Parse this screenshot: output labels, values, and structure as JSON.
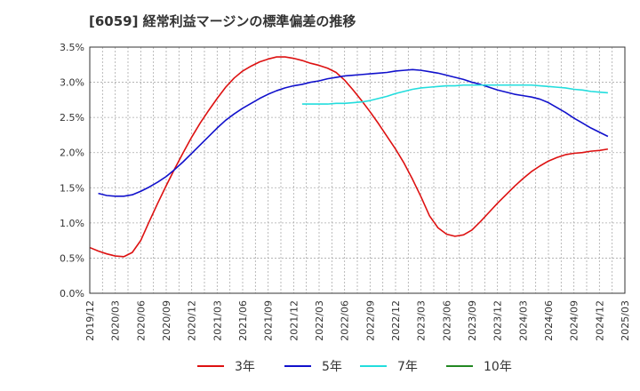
{
  "chart_data": {
    "type": "line",
    "title": "[6059]  経常利益マージンの標準偏差の推移",
    "xlabel": "",
    "ylabel": "",
    "ylim": [
      0.0,
      3.5
    ],
    "y_ticks": [
      "0.0%",
      "0.5%",
      "1.0%",
      "1.5%",
      "2.0%",
      "2.5%",
      "3.0%",
      "3.5%"
    ],
    "x_ticks": [
      "2019/12",
      "2020/03",
      "2020/06",
      "2020/09",
      "2020/12",
      "2021/03",
      "2021/06",
      "2021/09",
      "2021/12",
      "2022/03",
      "2022/06",
      "2022/09",
      "2022/12",
      "2023/03",
      "2023/06",
      "2023/09",
      "2023/12",
      "2024/03",
      "2024/06",
      "2024/09",
      "2024/12",
      "2025/03"
    ],
    "grid": true,
    "legend_position": "bottom",
    "series": [
      {
        "name": "3年",
        "color": "#dd1111",
        "points": [
          [
            "2019/12",
            0.65
          ],
          [
            "2020/01",
            0.6
          ],
          [
            "2020/02",
            0.56
          ],
          [
            "2020/03",
            0.53
          ],
          [
            "2020/04",
            0.52
          ],
          [
            "2020/05",
            0.58
          ],
          [
            "2020/06",
            0.75
          ],
          [
            "2020/07",
            1.02
          ],
          [
            "2020/08",
            1.28
          ],
          [
            "2020/09",
            1.53
          ],
          [
            "2020/10",
            1.77
          ],
          [
            "2020/11",
            2.0
          ],
          [
            "2020/12",
            2.22
          ],
          [
            "2021/01",
            2.42
          ],
          [
            "2021/02",
            2.6
          ],
          [
            "2021/03",
            2.77
          ],
          [
            "2021/04",
            2.93
          ],
          [
            "2021/05",
            3.06
          ],
          [
            "2021/06",
            3.16
          ],
          [
            "2021/07",
            3.23
          ],
          [
            "2021/08",
            3.29
          ],
          [
            "2021/09",
            3.33
          ],
          [
            "2021/10",
            3.36
          ],
          [
            "2021/11",
            3.36
          ],
          [
            "2021/12",
            3.34
          ],
          [
            "2022/01",
            3.31
          ],
          [
            "2022/02",
            3.27
          ],
          [
            "2022/03",
            3.24
          ],
          [
            "2022/04",
            3.2
          ],
          [
            "2022/05",
            3.14
          ],
          [
            "2022/06",
            3.03
          ],
          [
            "2022/07",
            2.89
          ],
          [
            "2022/08",
            2.74
          ],
          [
            "2022/09",
            2.58
          ],
          [
            "2022/10",
            2.41
          ],
          [
            "2022/11",
            2.23
          ],
          [
            "2022/12",
            2.05
          ],
          [
            "2023/01",
            1.85
          ],
          [
            "2023/02",
            1.62
          ],
          [
            "2023/03",
            1.37
          ],
          [
            "2023/04",
            1.1
          ],
          [
            "2023/05",
            0.93
          ],
          [
            "2023/06",
            0.84
          ],
          [
            "2023/07",
            0.81
          ],
          [
            "2023/08",
            0.83
          ],
          [
            "2023/09",
            0.9
          ],
          [
            "2023/10",
            1.02
          ],
          [
            "2023/11",
            1.15
          ],
          [
            "2023/12",
            1.28
          ],
          [
            "2024/01",
            1.4
          ],
          [
            "2024/02",
            1.52
          ],
          [
            "2024/03",
            1.63
          ],
          [
            "2024/04",
            1.73
          ],
          [
            "2024/05",
            1.81
          ],
          [
            "2024/06",
            1.88
          ],
          [
            "2024/07",
            1.93
          ],
          [
            "2024/08",
            1.97
          ],
          [
            "2024/09",
            1.99
          ],
          [
            "2024/10",
            2.0
          ],
          [
            "2024/11",
            2.02
          ],
          [
            "2024/12",
            2.03
          ],
          [
            "2025/01",
            2.05
          ]
        ]
      },
      {
        "name": "5年",
        "color": "#1111cc",
        "points": [
          [
            "2020/01",
            1.42
          ],
          [
            "2020/02",
            1.39
          ],
          [
            "2020/03",
            1.38
          ],
          [
            "2020/04",
            1.38
          ],
          [
            "2020/05",
            1.4
          ],
          [
            "2020/06",
            1.45
          ],
          [
            "2020/07",
            1.51
          ],
          [
            "2020/08",
            1.58
          ],
          [
            "2020/09",
            1.66
          ],
          [
            "2020/10",
            1.76
          ],
          [
            "2020/11",
            1.87
          ],
          [
            "2020/12",
            1.99
          ],
          [
            "2021/01",
            2.11
          ],
          [
            "2021/02",
            2.23
          ],
          [
            "2021/03",
            2.35
          ],
          [
            "2021/04",
            2.46
          ],
          [
            "2021/05",
            2.55
          ],
          [
            "2021/06",
            2.63
          ],
          [
            "2021/07",
            2.7
          ],
          [
            "2021/08",
            2.77
          ],
          [
            "2021/09",
            2.83
          ],
          [
            "2021/10",
            2.88
          ],
          [
            "2021/11",
            2.92
          ],
          [
            "2021/12",
            2.95
          ],
          [
            "2022/01",
            2.97
          ],
          [
            "2022/02",
            3.0
          ],
          [
            "2022/03",
            3.02
          ],
          [
            "2022/04",
            3.05
          ],
          [
            "2022/05",
            3.07
          ],
          [
            "2022/06",
            3.09
          ],
          [
            "2022/07",
            3.1
          ],
          [
            "2022/08",
            3.11
          ],
          [
            "2022/09",
            3.12
          ],
          [
            "2022/10",
            3.13
          ],
          [
            "2022/11",
            3.14
          ],
          [
            "2022/12",
            3.16
          ],
          [
            "2023/01",
            3.17
          ],
          [
            "2023/02",
            3.18
          ],
          [
            "2023/03",
            3.17
          ],
          [
            "2023/04",
            3.15
          ],
          [
            "2023/05",
            3.13
          ],
          [
            "2023/06",
            3.1
          ],
          [
            "2023/07",
            3.07
          ],
          [
            "2023/08",
            3.04
          ],
          [
            "2023/09",
            3.0
          ],
          [
            "2023/10",
            2.97
          ],
          [
            "2023/11",
            2.93
          ],
          [
            "2023/12",
            2.89
          ],
          [
            "2024/01",
            2.86
          ],
          [
            "2024/02",
            2.83
          ],
          [
            "2024/03",
            2.81
          ],
          [
            "2024/04",
            2.79
          ],
          [
            "2024/05",
            2.76
          ],
          [
            "2024/06",
            2.71
          ],
          [
            "2024/07",
            2.64
          ],
          [
            "2024/08",
            2.57
          ],
          [
            "2024/09",
            2.49
          ],
          [
            "2024/10",
            2.42
          ],
          [
            "2024/11",
            2.35
          ],
          [
            "2024/12",
            2.29
          ],
          [
            "2025/01",
            2.23
          ]
        ]
      },
      {
        "name": "7年",
        "color": "#22dddd",
        "points": [
          [
            "2022/01",
            2.69
          ],
          [
            "2022/02",
            2.69
          ],
          [
            "2022/03",
            2.69
          ],
          [
            "2022/04",
            2.69
          ],
          [
            "2022/05",
            2.7
          ],
          [
            "2022/06",
            2.7
          ],
          [
            "2022/07",
            2.71
          ],
          [
            "2022/08",
            2.72
          ],
          [
            "2022/09",
            2.74
          ],
          [
            "2022/10",
            2.77
          ],
          [
            "2022/11",
            2.8
          ],
          [
            "2022/12",
            2.84
          ],
          [
            "2023/01",
            2.87
          ],
          [
            "2023/02",
            2.9
          ],
          [
            "2023/03",
            2.92
          ],
          [
            "2023/04",
            2.93
          ],
          [
            "2023/05",
            2.94
          ],
          [
            "2023/06",
            2.95
          ],
          [
            "2023/07",
            2.95
          ],
          [
            "2023/08",
            2.96
          ],
          [
            "2023/09",
            2.96
          ],
          [
            "2023/10",
            2.96
          ],
          [
            "2023/11",
            2.96
          ],
          [
            "2023/12",
            2.96
          ],
          [
            "2024/01",
            2.96
          ],
          [
            "2024/02",
            2.96
          ],
          [
            "2024/03",
            2.96
          ],
          [
            "2024/04",
            2.96
          ],
          [
            "2024/05",
            2.95
          ],
          [
            "2024/06",
            2.94
          ],
          [
            "2024/07",
            2.93
          ],
          [
            "2024/08",
            2.92
          ],
          [
            "2024/09",
            2.9
          ],
          [
            "2024/10",
            2.89
          ],
          [
            "2024/11",
            2.87
          ],
          [
            "2024/12",
            2.86
          ],
          [
            "2025/01",
            2.85
          ]
        ]
      },
      {
        "name": "10年",
        "color": "#228822",
        "points": []
      }
    ]
  }
}
